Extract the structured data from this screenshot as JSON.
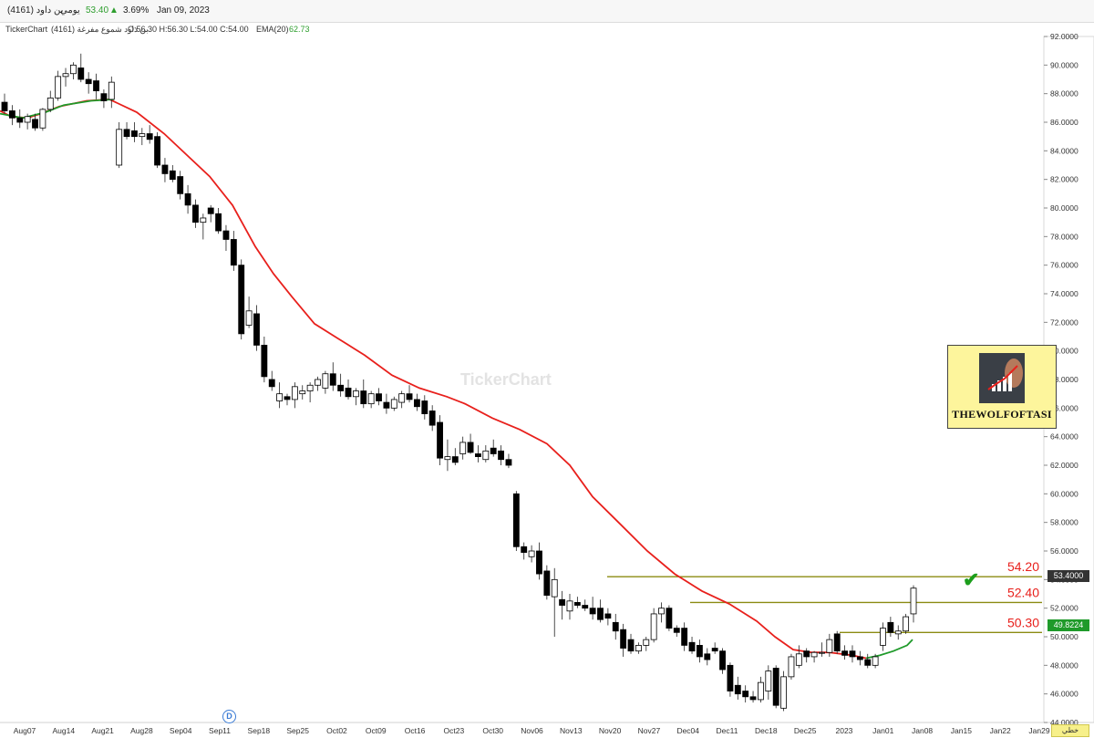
{
  "header": {
    "symbol": "(4161) بن داود",
    "period": "يومي",
    "last_price": "53.40",
    "change_pct": "3.69%",
    "date": "Jan 09, 2023"
  },
  "info": {
    "brand": "TickerChart",
    "series_name": "(4161) بن داود شموع مفرغة",
    "ohlc": "O:56.30 H:56.30 L:54.00 C:54.00",
    "ema_label": "EMA(20)",
    "ema_value": "62.73"
  },
  "watermark": "TickerChart",
  "logo_text": "THEWOLFOFTASI",
  "price_tags": {
    "last": "53.4000",
    "ema": "49.8224"
  },
  "footer_button": "خطي",
  "marker_letter": "D",
  "icons": {
    "up_arrow": "triangle-up-icon",
    "check": "check-icon"
  },
  "colors": {
    "up": "#2e9e2e",
    "ema_red": "#e8201c",
    "ema_green": "#1f9a2a",
    "level_line": "#8b8b12",
    "level_text": "#e8201c"
  },
  "chart_data": {
    "type": "candlestick",
    "ylim": [
      44,
      92
    ],
    "y_ticks": [
      44,
      46,
      48,
      50,
      52,
      54,
      56,
      58,
      60,
      62,
      64,
      66,
      68,
      70,
      72,
      74,
      76,
      78,
      80,
      82,
      84,
      86,
      88,
      90,
      92
    ],
    "x_labels": [
      "Aug07",
      "Aug14",
      "Aug21",
      "Aug28",
      "Sep04",
      "Sep11",
      "Sep18",
      "Sep25",
      "Oct02",
      "Oct09",
      "Oct16",
      "Oct23",
      "Oct30",
      "Nov06",
      "Nov13",
      "Nov20",
      "Nov27",
      "Dec04",
      "Dec11",
      "Dec18",
      "Dec25",
      "2023",
      "Jan01",
      "Jan08",
      "Jan15",
      "Jan22",
      "Jan29"
    ],
    "levels": [
      {
        "label": "54.20",
        "value": 54.2
      },
      {
        "label": "52.40",
        "value": 52.4
      },
      {
        "label": "50.30",
        "value": 50.3
      }
    ],
    "candles": [
      {
        "o": 87.4,
        "h": 88.0,
        "l": 86.6,
        "c": 86.8
      },
      {
        "o": 86.8,
        "h": 87.2,
        "l": 85.8,
        "c": 86.3
      },
      {
        "o": 86.3,
        "h": 86.9,
        "l": 85.6,
        "c": 86.0
      },
      {
        "o": 86.0,
        "h": 86.6,
        "l": 85.5,
        "c": 86.4
      },
      {
        "o": 86.2,
        "h": 86.6,
        "l": 85.4,
        "c": 85.6
      },
      {
        "o": 85.6,
        "h": 87.0,
        "l": 85.4,
        "c": 86.9
      },
      {
        "o": 86.9,
        "h": 88.2,
        "l": 86.7,
        "c": 87.7
      },
      {
        "o": 87.7,
        "h": 89.6,
        "l": 87.5,
        "c": 89.2
      },
      {
        "o": 89.2,
        "h": 89.8,
        "l": 88.5,
        "c": 89.4
      },
      {
        "o": 89.4,
        "h": 90.2,
        "l": 89.0,
        "c": 90.0
      },
      {
        "o": 89.8,
        "h": 90.8,
        "l": 88.8,
        "c": 89.0
      },
      {
        "o": 89.0,
        "h": 89.5,
        "l": 88.0,
        "c": 88.7
      },
      {
        "o": 88.9,
        "h": 89.4,
        "l": 87.6,
        "c": 88.2
      },
      {
        "o": 88.0,
        "h": 88.3,
        "l": 87.0,
        "c": 87.5
      },
      {
        "o": 87.6,
        "h": 89.2,
        "l": 87.0,
        "c": 88.8
      },
      {
        "o": 83.0,
        "h": 86.0,
        "l": 82.8,
        "c": 85.5
      },
      {
        "o": 85.5,
        "h": 86.0,
        "l": 84.8,
        "c": 85.0
      },
      {
        "o": 85.4,
        "h": 86.0,
        "l": 84.6,
        "c": 85.0
      },
      {
        "o": 85.0,
        "h": 85.6,
        "l": 84.4,
        "c": 85.2
      },
      {
        "o": 85.2,
        "h": 85.8,
        "l": 84.5,
        "c": 84.8
      },
      {
        "o": 85.0,
        "h": 85.3,
        "l": 82.8,
        "c": 83.0
      },
      {
        "o": 83.0,
        "h": 83.5,
        "l": 81.8,
        "c": 82.4
      },
      {
        "o": 82.6,
        "h": 83.0,
        "l": 81.8,
        "c": 82.0
      },
      {
        "o": 82.2,
        "h": 82.6,
        "l": 80.6,
        "c": 81.0
      },
      {
        "o": 81.0,
        "h": 81.6,
        "l": 79.6,
        "c": 80.2
      },
      {
        "o": 80.2,
        "h": 80.6,
        "l": 78.6,
        "c": 79.0
      },
      {
        "o": 79.0,
        "h": 79.6,
        "l": 77.8,
        "c": 79.3
      },
      {
        "o": 80.0,
        "h": 80.2,
        "l": 79.0,
        "c": 79.6
      },
      {
        "o": 79.6,
        "h": 80.0,
        "l": 78.2,
        "c": 78.4
      },
      {
        "o": 78.4,
        "h": 78.8,
        "l": 77.0,
        "c": 77.8
      },
      {
        "o": 77.8,
        "h": 78.4,
        "l": 75.6,
        "c": 76.0
      },
      {
        "o": 76.0,
        "h": 76.4,
        "l": 70.8,
        "c": 71.2
      },
      {
        "o": 71.8,
        "h": 73.8,
        "l": 71.6,
        "c": 72.8
      },
      {
        "o": 72.6,
        "h": 73.2,
        "l": 70.0,
        "c": 70.4
      },
      {
        "o": 70.4,
        "h": 71.0,
        "l": 67.8,
        "c": 68.2
      },
      {
        "o": 68.0,
        "h": 68.6,
        "l": 67.2,
        "c": 67.5
      },
      {
        "o": 66.5,
        "h": 67.8,
        "l": 66.0,
        "c": 67.0
      },
      {
        "o": 66.8,
        "h": 67.0,
        "l": 66.2,
        "c": 66.6
      },
      {
        "o": 66.6,
        "h": 67.8,
        "l": 66.0,
        "c": 67.5
      },
      {
        "o": 67.0,
        "h": 67.6,
        "l": 66.6,
        "c": 67.2
      },
      {
        "o": 67.2,
        "h": 67.8,
        "l": 66.4,
        "c": 67.6
      },
      {
        "o": 67.6,
        "h": 68.2,
        "l": 67.2,
        "c": 68.0
      },
      {
        "o": 67.4,
        "h": 68.6,
        "l": 67.0,
        "c": 68.4
      },
      {
        "o": 68.4,
        "h": 69.2,
        "l": 67.2,
        "c": 67.6
      },
      {
        "o": 67.6,
        "h": 68.4,
        "l": 66.8,
        "c": 67.2
      },
      {
        "o": 67.4,
        "h": 68.0,
        "l": 66.6,
        "c": 66.8
      },
      {
        "o": 66.8,
        "h": 67.4,
        "l": 66.2,
        "c": 67.2
      },
      {
        "o": 67.2,
        "h": 68.0,
        "l": 66.0,
        "c": 66.3
      },
      {
        "o": 66.3,
        "h": 67.2,
        "l": 66.0,
        "c": 67.0
      },
      {
        "o": 67.0,
        "h": 67.4,
        "l": 66.2,
        "c": 66.5
      },
      {
        "o": 66.4,
        "h": 67.0,
        "l": 65.6,
        "c": 66.0
      },
      {
        "o": 66.0,
        "h": 66.8,
        "l": 65.8,
        "c": 66.6
      },
      {
        "o": 66.4,
        "h": 67.2,
        "l": 66.0,
        "c": 67.0
      },
      {
        "o": 67.0,
        "h": 67.6,
        "l": 66.4,
        "c": 66.6
      },
      {
        "o": 66.6,
        "h": 67.0,
        "l": 65.8,
        "c": 66.1
      },
      {
        "o": 66.5,
        "h": 66.9,
        "l": 65.2,
        "c": 65.6
      },
      {
        "o": 65.8,
        "h": 66.2,
        "l": 64.4,
        "c": 64.8
      },
      {
        "o": 65.0,
        "h": 65.5,
        "l": 62.0,
        "c": 62.5
      },
      {
        "o": 62.4,
        "h": 63.8,
        "l": 61.6,
        "c": 62.6
      },
      {
        "o": 62.6,
        "h": 63.2,
        "l": 62.0,
        "c": 62.2
      },
      {
        "o": 62.8,
        "h": 64.0,
        "l": 62.4,
        "c": 63.6
      },
      {
        "o": 63.6,
        "h": 64.2,
        "l": 62.8,
        "c": 62.9
      },
      {
        "o": 62.8,
        "h": 63.4,
        "l": 62.2,
        "c": 62.6
      },
      {
        "o": 62.4,
        "h": 63.4,
        "l": 62.2,
        "c": 63.0
      },
      {
        "o": 63.2,
        "h": 63.8,
        "l": 62.6,
        "c": 62.8
      },
      {
        "o": 63.0,
        "h": 63.4,
        "l": 62.0,
        "c": 62.4
      },
      {
        "o": 62.4,
        "h": 62.8,
        "l": 61.8,
        "c": 62.0
      },
      {
        "o": 60.0,
        "h": 60.2,
        "l": 56.0,
        "c": 56.3
      },
      {
        "o": 56.3,
        "h": 56.6,
        "l": 55.4,
        "c": 55.9
      },
      {
        "o": 55.6,
        "h": 56.4,
        "l": 55.2,
        "c": 56.0
      },
      {
        "o": 56.0,
        "h": 56.6,
        "l": 54.0,
        "c": 54.4
      },
      {
        "o": 54.6,
        "h": 55.0,
        "l": 52.6,
        "c": 52.9
      },
      {
        "o": 52.8,
        "h": 54.8,
        "l": 50.0,
        "c": 54.0
      },
      {
        "o": 52.6,
        "h": 53.2,
        "l": 51.2,
        "c": 52.2
      },
      {
        "o": 51.8,
        "h": 53.0,
        "l": 51.2,
        "c": 52.5
      },
      {
        "o": 52.4,
        "h": 52.8,
        "l": 52.0,
        "c": 52.2
      },
      {
        "o": 52.2,
        "h": 52.6,
        "l": 51.8,
        "c": 52.0
      },
      {
        "o": 52.0,
        "h": 52.8,
        "l": 51.2,
        "c": 51.6
      },
      {
        "o": 52.0,
        "h": 52.6,
        "l": 51.0,
        "c": 51.2
      },
      {
        "o": 51.6,
        "h": 52.0,
        "l": 50.8,
        "c": 51.3
      },
      {
        "o": 51.0,
        "h": 51.6,
        "l": 49.8,
        "c": 50.4
      },
      {
        "o": 50.5,
        "h": 50.9,
        "l": 48.6,
        "c": 49.2
      },
      {
        "o": 49.8,
        "h": 50.2,
        "l": 48.8,
        "c": 49.0
      },
      {
        "o": 49.0,
        "h": 49.6,
        "l": 48.8,
        "c": 49.4
      },
      {
        "o": 49.4,
        "h": 50.0,
        "l": 49.0,
        "c": 49.8
      },
      {
        "o": 49.8,
        "h": 52.0,
        "l": 49.6,
        "c": 51.6
      },
      {
        "o": 51.6,
        "h": 52.4,
        "l": 51.0,
        "c": 52.0
      },
      {
        "o": 52.0,
        "h": 52.2,
        "l": 50.4,
        "c": 50.6
      },
      {
        "o": 50.6,
        "h": 50.8,
        "l": 50.0,
        "c": 50.3
      },
      {
        "o": 50.6,
        "h": 51.0,
        "l": 49.0,
        "c": 49.4
      },
      {
        "o": 49.6,
        "h": 50.0,
        "l": 48.8,
        "c": 49.0
      },
      {
        "o": 49.4,
        "h": 49.8,
        "l": 48.2,
        "c": 48.6
      },
      {
        "o": 48.8,
        "h": 49.2,
        "l": 48.0,
        "c": 48.4
      },
      {
        "o": 49.2,
        "h": 49.6,
        "l": 48.8,
        "c": 49.0
      },
      {
        "o": 49.0,
        "h": 49.2,
        "l": 47.4,
        "c": 47.7
      },
      {
        "o": 48.0,
        "h": 48.2,
        "l": 45.8,
        "c": 46.2
      },
      {
        "o": 46.6,
        "h": 47.2,
        "l": 45.6,
        "c": 46.0
      },
      {
        "o": 46.2,
        "h": 46.6,
        "l": 45.4,
        "c": 45.8
      },
      {
        "o": 45.8,
        "h": 46.2,
        "l": 45.4,
        "c": 45.6
      },
      {
        "o": 45.6,
        "h": 47.2,
        "l": 45.4,
        "c": 46.8
      },
      {
        "o": 46.2,
        "h": 48.0,
        "l": 45.6,
        "c": 47.6
      },
      {
        "o": 47.8,
        "h": 48.0,
        "l": 45.0,
        "c": 45.2
      },
      {
        "o": 45.0,
        "h": 47.6,
        "l": 44.8,
        "c": 47.2
      },
      {
        "o": 47.2,
        "h": 48.8,
        "l": 47.0,
        "c": 48.6
      },
      {
        "o": 48.0,
        "h": 49.4,
        "l": 47.8,
        "c": 48.8
      },
      {
        "o": 49.0,
        "h": 49.2,
        "l": 48.2,
        "c": 48.6
      },
      {
        "o": 48.6,
        "h": 49.0,
        "l": 48.2,
        "c": 48.9
      },
      {
        "o": 48.9,
        "h": 49.6,
        "l": 48.6,
        "c": 48.9
      },
      {
        "o": 48.9,
        "h": 50.2,
        "l": 48.6,
        "c": 49.8
      },
      {
        "o": 50.2,
        "h": 50.4,
        "l": 48.8,
        "c": 49.0
      },
      {
        "o": 49.0,
        "h": 49.4,
        "l": 48.4,
        "c": 48.7
      },
      {
        "o": 49.0,
        "h": 49.4,
        "l": 48.2,
        "c": 48.6
      },
      {
        "o": 48.6,
        "h": 49.0,
        "l": 48.0,
        "c": 48.4
      },
      {
        "o": 48.4,
        "h": 48.8,
        "l": 47.8,
        "c": 48.0
      },
      {
        "o": 48.0,
        "h": 48.8,
        "l": 47.8,
        "c": 48.6
      },
      {
        "o": 49.4,
        "h": 51.0,
        "l": 49.0,
        "c": 50.6
      },
      {
        "o": 51.0,
        "h": 51.4,
        "l": 50.0,
        "c": 50.3
      },
      {
        "o": 50.2,
        "h": 50.8,
        "l": 49.8,
        "c": 50.4
      },
      {
        "o": 50.4,
        "h": 51.6,
        "l": 50.2,
        "c": 51.4
      },
      {
        "o": 51.6,
        "h": 53.6,
        "l": 51.0,
        "c": 53.4
      }
    ],
    "ema20": [
      [
        0,
        86.8
      ],
      [
        12,
        86.4
      ],
      [
        30,
        86.3
      ],
      [
        45,
        86.6
      ],
      [
        65,
        87.1
      ],
      [
        95,
        87.5
      ],
      [
        120,
        87.6
      ],
      [
        150,
        86.7
      ],
      [
        180,
        85.2
      ],
      [
        205,
        83.7
      ],
      [
        230,
        82.2
      ],
      [
        255,
        80.2
      ],
      [
        280,
        77.3
      ],
      [
        300,
        75.4
      ],
      [
        320,
        73.8
      ],
      [
        345,
        71.9
      ],
      [
        370,
        70.9
      ],
      [
        400,
        69.7
      ],
      [
        430,
        68.3
      ],
      [
        460,
        67.4
      ],
      [
        490,
        66.8
      ],
      [
        510,
        66.3
      ],
      [
        540,
        65.3
      ],
      [
        570,
        64.5
      ],
      [
        600,
        63.5
      ],
      [
        625,
        62.0
      ],
      [
        650,
        59.8
      ],
      [
        680,
        57.9
      ],
      [
        710,
        56.0
      ],
      [
        740,
        54.4
      ],
      [
        770,
        53.2
      ],
      [
        800,
        52.3
      ],
      [
        830,
        51.1
      ],
      [
        850,
        50.0
      ],
      [
        870,
        49.1
      ],
      [
        890,
        48.9
      ],
      [
        910,
        48.9
      ],
      [
        935,
        48.7
      ],
      [
        950,
        48.5
      ]
    ],
    "ema20_green_start": [
      [
        0,
        86.6
      ],
      [
        25,
        86.3
      ],
      [
        50,
        86.7
      ],
      [
        70,
        87.2
      ],
      [
        100,
        87.5
      ],
      [
        125,
        87.6
      ]
    ],
    "ema20_green_end": [
      [
        950,
        48.5
      ],
      [
        965,
        48.7
      ],
      [
        980,
        49.0
      ],
      [
        995,
        49.4
      ],
      [
        1001,
        49.8
      ]
    ]
  }
}
